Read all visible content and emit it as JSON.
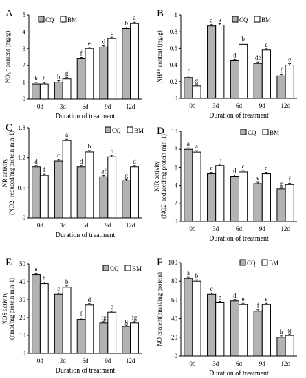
{
  "chart_data": [
    {
      "type": "bar",
      "panel_letter": "A",
      "ylabel": "NO₃⁻ content (mg/g)",
      "xlabel": "Duration of treatment",
      "ylim": [
        0,
        5
      ],
      "yticks": [
        "0",
        "1",
        "2",
        "3",
        "4",
        "5"
      ],
      "categories": [
        "0d",
        "3d",
        "6d",
        "9d",
        "12d"
      ],
      "series": [
        {
          "name": "CQ",
          "values": [
            0.9,
            1.0,
            2.4,
            3.1,
            4.2
          ],
          "letters": [
            "h",
            "h",
            "f",
            "d",
            "b"
          ]
        },
        {
          "name": "BM",
          "values": [
            0.9,
            1.2,
            3.0,
            3.6,
            4.5
          ],
          "letters": [
            "h",
            "g",
            "e",
            "c",
            "a"
          ]
        }
      ]
    },
    {
      "type": "bar",
      "panel_letter": "B",
      "ylabel": "NH⁴⁺ content (mg/g)",
      "xlabel": "Duration of treatment",
      "ylim": [
        0,
        1.0
      ],
      "yticks": [
        "0",
        "0.2",
        "0.4",
        "0.6",
        "0.8",
        "1"
      ],
      "categories": [
        "0d",
        "3d",
        "6d",
        "9d",
        "12d"
      ],
      "series": [
        {
          "name": "CQ",
          "values": [
            0.25,
            0.87,
            0.45,
            0.42,
            0.27
          ],
          "letters": [
            "f",
            "a",
            "d",
            "de",
            "f"
          ]
        },
        {
          "name": "BM",
          "values": [
            0.15,
            0.88,
            0.65,
            0.58,
            0.4
          ],
          "letters": [
            "g",
            "a",
            "b",
            "c",
            "e"
          ]
        }
      ]
    },
    {
      "type": "bar",
      "panel_letter": "C",
      "ylabel": "NR activity",
      "ylabel2": "(NO2- reduced/mg protein min-1)",
      "xlabel": "Duration of treatment",
      "ylim": [
        0,
        1.8
      ],
      "yticks": [
        "0",
        "0.6",
        "1.2",
        "1.8"
      ],
      "categories": [
        "0d",
        "3d",
        "6d",
        "9d",
        "12d"
      ],
      "series": [
        {
          "name": "CQ",
          "values": [
            1.02,
            1.14,
            1.02,
            0.82,
            0.74
          ],
          "letters": [
            "d",
            "c",
            "d",
            "ef",
            "g"
          ]
        },
        {
          "name": "BM",
          "values": [
            0.85,
            1.55,
            1.32,
            1.22,
            1.02
          ],
          "letters": [
            "f",
            "a",
            "b",
            "b",
            "d"
          ]
        }
      ]
    },
    {
      "type": "bar",
      "panel_letter": "D",
      "ylabel": "NIR activity",
      "ylabel2": "(NO2- reduced/mg protein min-1)",
      "xlabel": "Duration of treatment",
      "ylim": [
        0,
        10
      ],
      "yticks": [
        "0",
        "2",
        "4",
        "6",
        "8",
        "10"
      ],
      "categories": [
        "0d",
        "3d",
        "6d",
        "9d",
        "12d"
      ],
      "series": [
        {
          "name": "CQ",
          "values": [
            8.0,
            5.3,
            5.0,
            4.2,
            3.6
          ],
          "letters": [
            "a",
            "c",
            "d",
            "e",
            "g"
          ]
        },
        {
          "name": "BM",
          "values": [
            7.7,
            6.2,
            5.5,
            5.3,
            4.1
          ],
          "letters": [
            "a",
            "b",
            "c",
            "d",
            "f"
          ]
        }
      ]
    },
    {
      "type": "bar",
      "panel_letter": "E",
      "ylabel": "NOS activity",
      "ylabel2": "(nmol/mg protein min-1)",
      "xlabel": "Duration of treatment",
      "ylim": [
        0,
        50
      ],
      "yticks": [
        "0",
        "10",
        "20",
        "30",
        "40",
        "50"
      ],
      "categories": [
        "0d",
        "3d",
        "6d",
        "9d",
        "12d"
      ],
      "series": [
        {
          "name": "CQ",
          "values": [
            44,
            33,
            19,
            17,
            15
          ],
          "letters": [
            "a",
            "c",
            "f",
            "fg",
            "g"
          ]
        },
        {
          "name": "BM",
          "values": [
            39,
            37,
            27,
            23,
            17
          ],
          "letters": [
            "b",
            "b",
            "d",
            "e",
            "fg"
          ]
        }
      ]
    },
    {
      "type": "bar",
      "panel_letter": "F",
      "ylabel": "NO content(nmol/mg protein)",
      "xlabel": "Duration of treatment",
      "ylim": [
        0,
        100
      ],
      "yticks": [
        "0",
        "20",
        "40",
        "60",
        "80",
        "100"
      ],
      "categories": [
        "0d",
        "3d",
        "6d",
        "9d",
        "12d"
      ],
      "series": [
        {
          "name": "CQ",
          "values": [
            83,
            66,
            59,
            48,
            20
          ],
          "letters": [
            "a",
            "c",
            "d",
            "f",
            "h"
          ]
        },
        {
          "name": "BM",
          "values": [
            80,
            57,
            55,
            55,
            22
          ],
          "letters": [
            "b",
            "e",
            "e",
            "e",
            "g"
          ]
        }
      ]
    }
  ],
  "colors": {
    "series_fill": [
      "#b3b3b3",
      "#ffffff"
    ],
    "stroke": "#000000"
  }
}
